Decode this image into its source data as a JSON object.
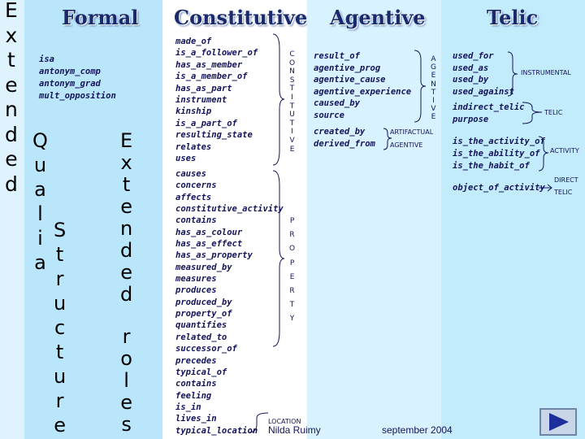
{
  "left_vertical": {
    "letters": [
      "E",
      "x",
      "t",
      "e",
      "n",
      "d",
      "e",
      "d"
    ]
  },
  "formal": {
    "title": "Formal",
    "items": [
      "isa",
      "antonym_comp",
      "antonym_grad",
      "mult_opposition"
    ],
    "vertical_qualia": [
      "Q",
      "u",
      "a",
      "l",
      "i",
      "a"
    ],
    "vertical_structure": [
      "S",
      "t",
      "r",
      "u",
      "c",
      "t",
      "u",
      "r",
      "e"
    ],
    "vertical_extended_roles": [
      "E",
      "x",
      "t",
      "e",
      "n",
      "d",
      "e",
      "d",
      "",
      "r",
      "o",
      "l",
      "e",
      "s"
    ]
  },
  "constitutive": {
    "title": "Constitutive",
    "group1": [
      "made_of",
      "is_a_follower_of",
      "has_as_member",
      "is_a_member_of",
      "has_as_part",
      "instrument",
      "kinship",
      "is_a_part_of",
      "resulting_state",
      "relates",
      "uses"
    ],
    "group1_label": [
      "C",
      "O",
      "N",
      "S",
      "T",
      "I",
      "T",
      "U",
      "T",
      "I",
      "V",
      "E"
    ],
    "group2": [
      "causes",
      "concerns",
      "affects",
      "constitutive_activity",
      "contains",
      "has_as_colour",
      "has_as_effect",
      "has_as_property",
      "measured_by",
      "measures",
      "produces",
      "produced_by",
      "property_of",
      "quantifies",
      "related_to",
      "successor_of",
      "precedes",
      "typical_of",
      "contains",
      "feeling",
      "is_in",
      "lives_in",
      "typical_location"
    ],
    "group2_label": [
      "P",
      "R",
      "O",
      "P",
      "E",
      "R",
      "T",
      "Y"
    ],
    "location_label": "LOCATION"
  },
  "agentive": {
    "title": "Agentive",
    "group1": [
      "result_of",
      "agentive_prog",
      "agentive_cause",
      "agentive_experience",
      "caused_by",
      "source"
    ],
    "group1_label": [
      "A",
      "G",
      "E",
      "N",
      "T",
      "I",
      "V",
      "E"
    ],
    "group2": [
      "created_by",
      "derived_from"
    ],
    "group2_label_top": "ARTIFACTUAL",
    "group2_label_bottom": "AGENTIVE"
  },
  "telic": {
    "title": "Telic",
    "group1": [
      "used_for",
      "used_as",
      "used_by",
      "used_against"
    ],
    "group1_label": "INSTRUMENTAL",
    "group2": [
      "indirect_telic",
      "purpose"
    ],
    "group2_label": "TELIC",
    "group3": [
      "is_the_activity_of",
      "is_the_ability_of",
      "is_the_habit_of"
    ],
    "group3_label": "ACTIVITY",
    "group4": [
      "object_of_activity"
    ],
    "group4_label_top": "DIRECT",
    "group4_label_bottom": "TELIC"
  },
  "footer": {
    "author": "Nilda Ruimy",
    "date": "september 2004"
  },
  "nav": {
    "icon": "next-slide-icon"
  },
  "colors": {
    "header": "#1a2a6c",
    "text": "#14145a",
    "nav_button": "#1d2f9b"
  }
}
